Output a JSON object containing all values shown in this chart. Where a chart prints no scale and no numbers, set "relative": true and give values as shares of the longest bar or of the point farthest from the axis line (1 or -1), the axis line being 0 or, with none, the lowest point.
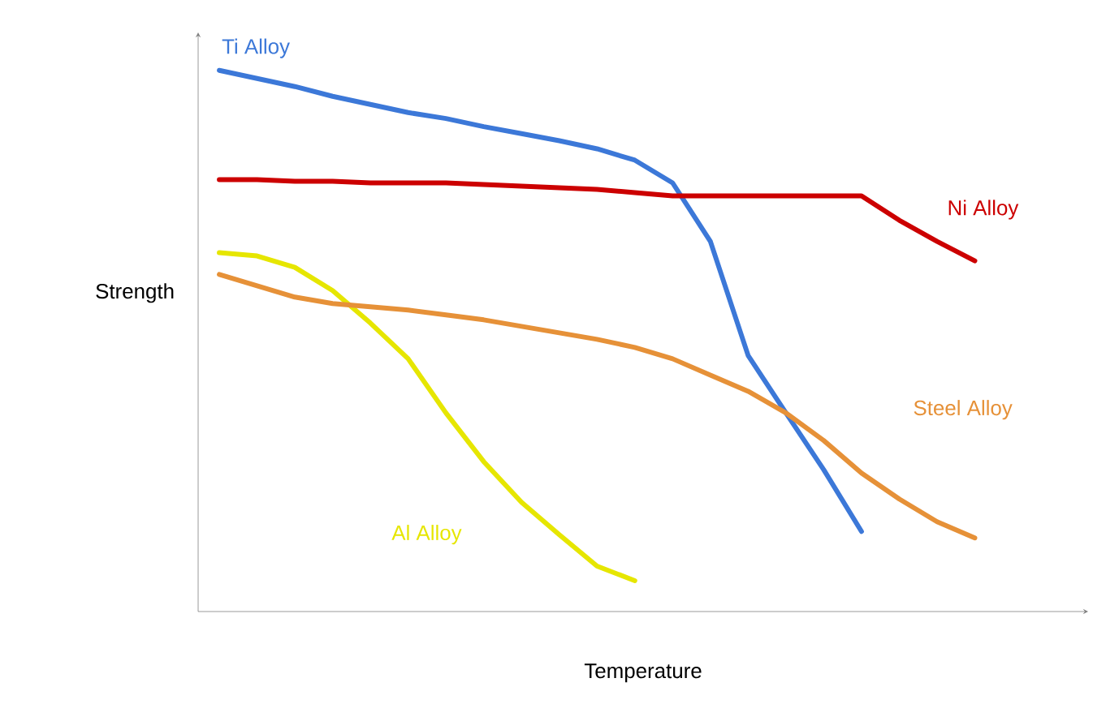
{
  "chart_data": {
    "type": "line",
    "relative": true,
    "xlabel": "Temperature",
    "ylabel": "Strength",
    "marker": "none",
    "line_style": "solid",
    "categories": [
      null,
      null,
      null,
      null,
      null,
      null,
      null,
      null,
      null,
      null,
      null,
      null,
      null,
      null,
      null,
      null,
      null,
      null,
      null,
      null,
      null
    ],
    "series": [
      {
        "name": "Ti Alloy",
        "color": "#3c78d8",
        "values": [
          1.0,
          0.985,
          0.97,
          0.952,
          0.937,
          0.922,
          0.911,
          0.896,
          0.883,
          0.87,
          0.855,
          0.834,
          0.792,
          0.684,
          0.473,
          0.367,
          0.262,
          0.148,
          null,
          null,
          null
        ]
      },
      {
        "name": "Ni Alloy",
        "color": "#cc0000",
        "values": [
          0.798,
          0.798,
          0.795,
          0.795,
          0.792,
          0.792,
          0.792,
          0.789,
          0.786,
          0.783,
          0.78,
          0.774,
          0.768,
          0.768,
          0.768,
          0.768,
          0.768,
          0.768,
          0.723,
          0.684,
          0.648
        ]
      },
      {
        "name": "Al Alloy",
        "color": "#e6e600",
        "values": [
          0.663,
          0.657,
          0.636,
          0.593,
          0.533,
          0.467,
          0.367,
          0.277,
          0.202,
          0.142,
          0.084,
          0.057,
          null,
          null,
          null,
          null,
          null,
          null,
          null,
          null,
          null
        ]
      },
      {
        "name": "Steel Alloy",
        "color": "#e69138",
        "values": [
          0.623,
          0.602,
          0.581,
          0.569,
          0.563,
          0.557,
          0.548,
          0.539,
          0.527,
          0.515,
          0.503,
          0.488,
          0.467,
          0.437,
          0.407,
          0.367,
          0.316,
          0.256,
          0.208,
          0.166,
          0.136
        ]
      }
    ]
  }
}
